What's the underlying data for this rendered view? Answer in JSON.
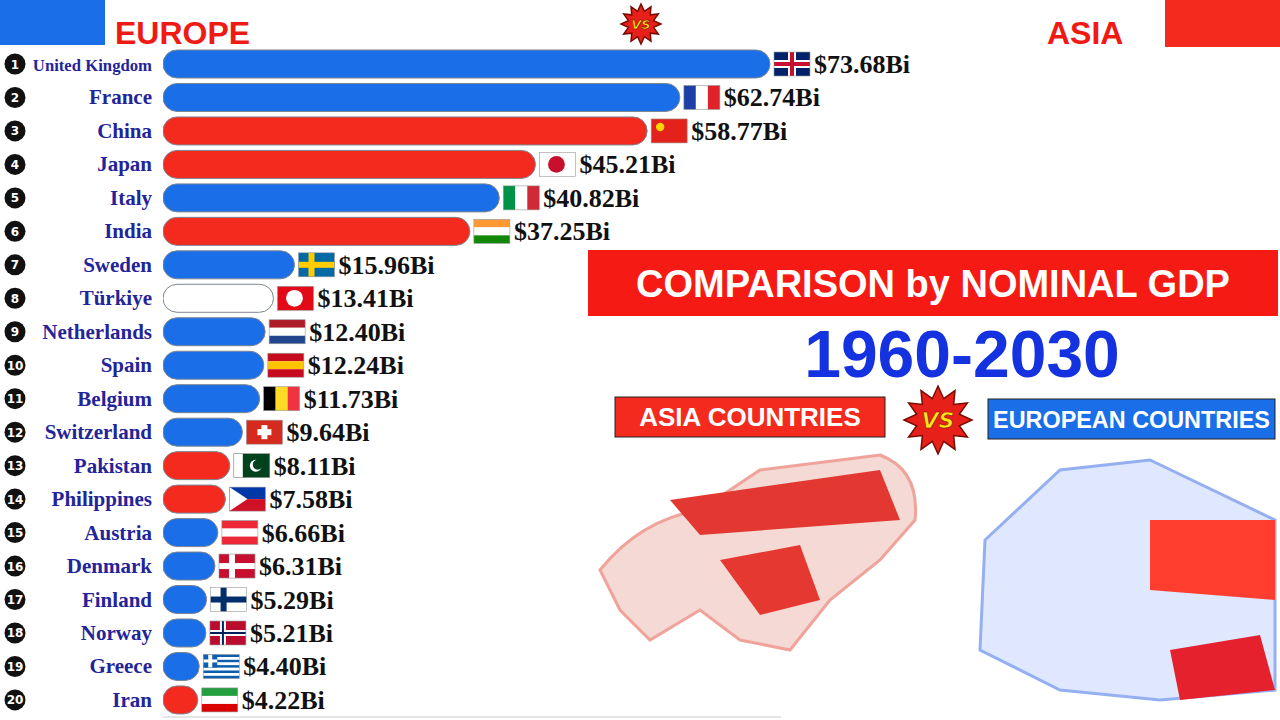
{
  "chart_data": {
    "type": "bar",
    "orientation": "horizontal",
    "title": "COMPARISON by NOMINAL GDP",
    "subtitle": "1960-2030",
    "left_heading": "EUROPE",
    "right_heading": "ASIA",
    "vs_label": "VS",
    "groups": [
      {
        "name": "ASIA COUNTRIES",
        "color": "#f52a1e"
      },
      {
        "name": "EUROPEAN COUNTRIES",
        "color": "#1a6fe8"
      }
    ],
    "legend": "right",
    "ranks": [
      1,
      2,
      3,
      4,
      5,
      6,
      7,
      8,
      9,
      10,
      11,
      12,
      13,
      14,
      15,
      16,
      17,
      18,
      19,
      20
    ],
    "categories": [
      "United Kingdom",
      "France",
      "China",
      "Japan",
      "Italy",
      "India",
      "Sweden",
      "Türkiye",
      "Netherlands",
      "Spain",
      "Belgium",
      "Switzerland",
      "Pakistan",
      "Philippines",
      "Austria",
      "Denmark",
      "Finland",
      "Norway",
      "Greece",
      "Iran"
    ],
    "values": [
      73.68,
      62.74,
      58.77,
      45.21,
      40.82,
      37.25,
      15.96,
      13.41,
      12.4,
      12.24,
      11.73,
      9.64,
      8.11,
      7.58,
      6.66,
      6.31,
      5.29,
      5.21,
      4.4,
      4.22
    ],
    "value_labels": [
      "$73.68Bi",
      "$62.74Bi",
      "$58.77Bi",
      "$45.21Bi",
      "$40.82Bi",
      "$37.25Bi",
      "$15.96Bi",
      "$13.41Bi",
      "$12.40Bi",
      "$12.24Bi",
      "$11.73Bi",
      "$9.64Bi",
      "$8.11Bi",
      "$7.58Bi",
      "$6.66Bi",
      "$6.31Bi",
      "$5.29Bi",
      "$5.21Bi",
      "$4.40Bi",
      "$4.22Bi"
    ],
    "colors": [
      "#1a6fe8",
      "#1a6fe8",
      "#f52a1e",
      "#f52a1e",
      "#1a6fe8",
      "#f52a1e",
      "#1a6fe8",
      "#ffffff",
      "#1a6fe8",
      "#1a6fe8",
      "#1a6fe8",
      "#1a6fe8",
      "#f52a1e",
      "#f52a1e",
      "#1a6fe8",
      "#1a6fe8",
      "#1a6fe8",
      "#1a6fe8",
      "#1a6fe8",
      "#f52a1e"
    ],
    "xlim": [
      0,
      75
    ],
    "xticks": [],
    "tick_labels": false,
    "grid": false,
    "data_labels": true
  }
}
